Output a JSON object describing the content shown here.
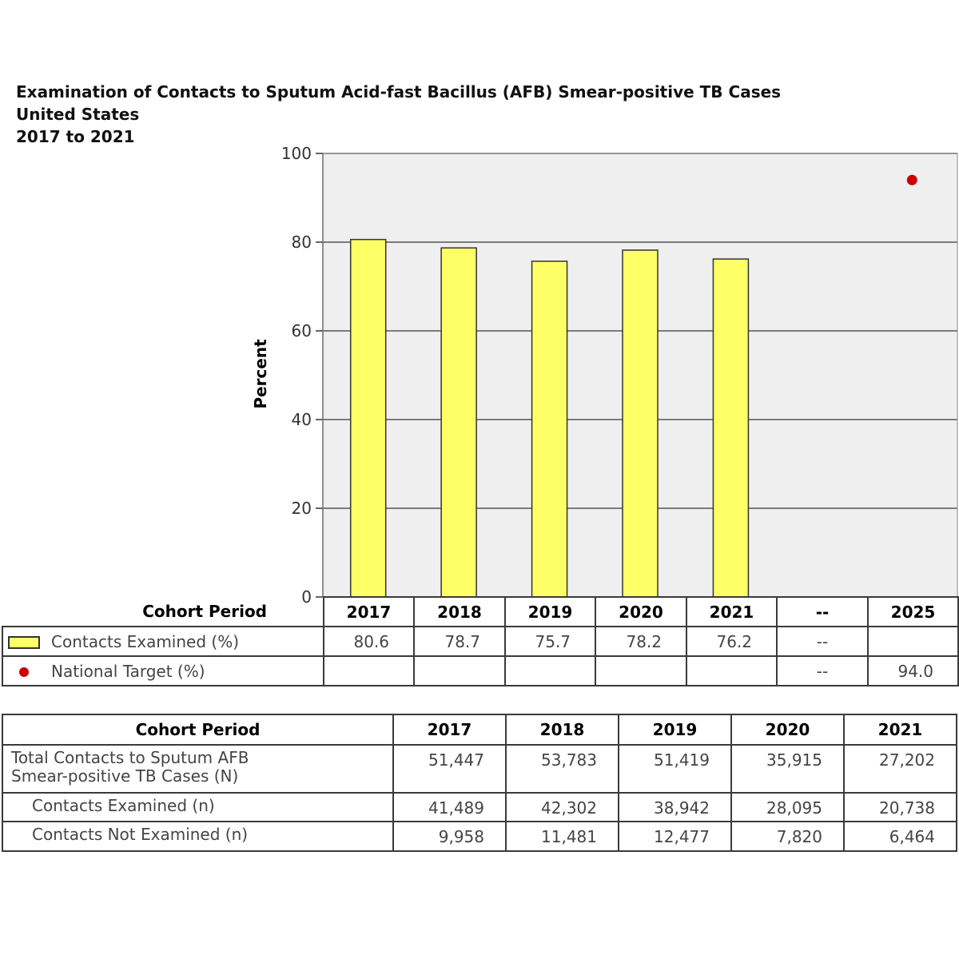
{
  "title": {
    "line1": "Examination of Contacts to Sputum Acid-fast Bacillus (AFB) Smear-positive TB Cases",
    "line2": "United States",
    "line3": "2017 to 2021"
  },
  "chart_data": {
    "type": "bar",
    "categories": [
      "2017",
      "2018",
      "2019",
      "2020",
      "2021",
      "--",
      "2025"
    ],
    "series": [
      {
        "name": "Contacts Examined (%)",
        "kind": "bar",
        "color": "#ffff66",
        "values": [
          80.6,
          78.7,
          75.7,
          78.2,
          76.2,
          null,
          null
        ]
      },
      {
        "name": "National Target (%)",
        "kind": "point",
        "color": "#cc0000",
        "values": [
          null,
          null,
          null,
          null,
          null,
          null,
          94.0
        ]
      }
    ],
    "ylabel": "Percent",
    "xlabel": "Cohort Period",
    "ylim": [
      0,
      100
    ],
    "yticks": [
      "0",
      "20",
      "40",
      "60",
      "80",
      "100"
    ],
    "grid": true,
    "plot_background": "#efefef"
  },
  "legend_table": {
    "header_label": "Cohort Period",
    "columns": [
      "2017",
      "2018",
      "2019",
      "2020",
      "2021",
      "--",
      "2025"
    ],
    "rows": [
      {
        "label": "Contacts Examined (%)",
        "cells": [
          "80.6",
          "78.7",
          "75.7",
          "78.2",
          "76.2",
          "--",
          ""
        ]
      },
      {
        "label": "National Target (%)",
        "cells": [
          "",
          "",
          "",
          "",
          "",
          "--",
          "94.0"
        ]
      }
    ]
  },
  "data_table": {
    "header_label": "Cohort Period",
    "columns": [
      "2017",
      "2018",
      "2019",
      "2020",
      "2021"
    ],
    "rows": [
      {
        "label_line1": "Total Contacts to Sputum AFB",
        "label_line2": "Smear-positive TB Cases (N)",
        "cells": [
          "51,447",
          "53,783",
          "51,419",
          "35,915",
          "27,202"
        ]
      },
      {
        "label_line1": "Contacts Examined (n)",
        "label_line2": "",
        "cells": [
          "41,489",
          "42,302",
          "38,942",
          "28,095",
          "20,738"
        ]
      },
      {
        "label_line1": "Contacts Not Examined (n)",
        "label_line2": "",
        "cells": [
          "9,958",
          "11,481",
          "12,477",
          "7,820",
          "6,464"
        ]
      }
    ]
  }
}
